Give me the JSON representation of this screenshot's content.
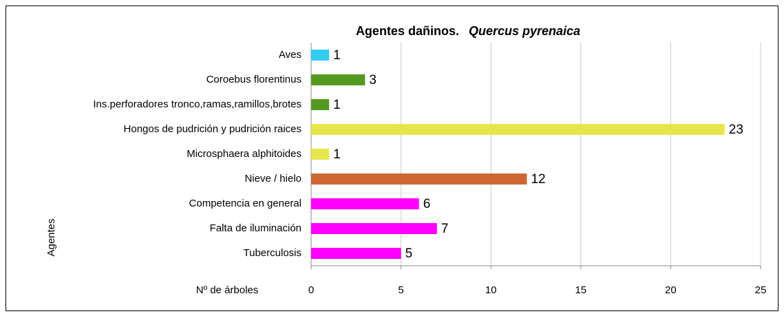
{
  "chart_data": {
    "type": "bar",
    "orientation": "horizontal",
    "title": "Agentes dañinos.",
    "subtitle": "Quercus pyrenaica",
    "x_label": "Nº de árboles",
    "y_label": "Agentes",
    "categories": [
      "Aves",
      "Coroebus florentinus",
      "Ins.perforadores tronco,ramas,ramillos,brotes",
      "Hongos de pudrición y pudrición raices",
      "Microsphaera alphitoides",
      "Nieve / hielo",
      "Competencia en general",
      "Falta de iluminación",
      "Tuberculosis"
    ],
    "values": [
      1,
      3,
      1,
      23,
      1,
      12,
      6,
      7,
      5
    ],
    "colors": [
      "#33ccee",
      "#559922",
      "#559922",
      "#e6e64c",
      "#e6e64c",
      "#cc6633",
      "#ff00ff",
      "#ff00ff",
      "#ff00ff"
    ],
    "xlim": [
      0,
      25
    ],
    "xticks": [
      0,
      5,
      10,
      15,
      20,
      25
    ],
    "grid": true
  }
}
